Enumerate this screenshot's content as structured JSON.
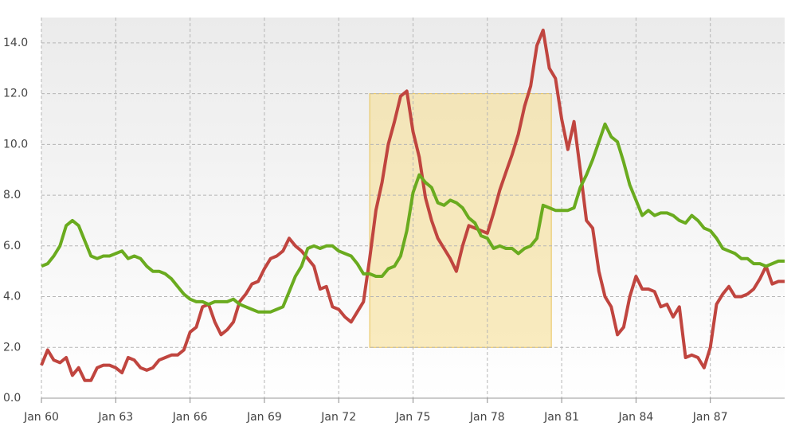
{
  "chart_data": {
    "type": "line",
    "x": [
      "1960-01",
      "1960-04",
      "1960-07",
      "1960-10",
      "1961-01",
      "1961-04",
      "1961-07",
      "1961-10",
      "1962-01",
      "1962-04",
      "1962-07",
      "1962-10",
      "1963-01",
      "1963-04",
      "1963-07",
      "1963-10",
      "1964-01",
      "1964-04",
      "1964-07",
      "1964-10",
      "1965-01",
      "1965-04",
      "1965-07",
      "1965-10",
      "1966-01",
      "1966-04",
      "1966-07",
      "1966-10",
      "1967-01",
      "1967-04",
      "1967-07",
      "1967-10",
      "1968-01",
      "1968-04",
      "1968-07",
      "1968-10",
      "1969-01",
      "1969-04",
      "1969-07",
      "1969-10",
      "1970-01",
      "1970-04",
      "1970-07",
      "1970-10",
      "1971-01",
      "1971-04",
      "1971-07",
      "1971-10",
      "1972-01",
      "1972-04",
      "1972-07",
      "1972-10",
      "1973-01",
      "1973-04",
      "1973-07",
      "1973-10",
      "1974-01",
      "1974-04",
      "1974-07",
      "1974-10",
      "1975-01",
      "1975-04",
      "1975-07",
      "1975-10",
      "1976-01",
      "1976-04",
      "1976-07",
      "1976-10",
      "1977-01",
      "1977-04",
      "1977-07",
      "1977-10",
      "1978-01",
      "1978-04",
      "1978-07",
      "1978-10",
      "1979-01",
      "1979-04",
      "1979-07",
      "1979-10",
      "1980-01",
      "1980-04",
      "1980-07",
      "1980-10",
      "1981-01",
      "1981-04",
      "1981-07",
      "1981-10",
      "1982-01",
      "1982-04",
      "1982-07",
      "1982-10",
      "1983-01",
      "1983-04",
      "1983-07",
      "1983-10",
      "1984-01",
      "1984-04",
      "1984-07",
      "1984-10",
      "1985-01",
      "1985-04",
      "1985-07",
      "1985-10",
      "1986-01",
      "1986-04",
      "1986-07",
      "1986-10",
      "1987-01",
      "1987-04",
      "1987-07",
      "1987-10",
      "1988-01",
      "1988-04",
      "1988-07",
      "1988-10",
      "1989-01",
      "1989-04",
      "1989-07",
      "1989-10",
      "1990-01"
    ],
    "series": [
      {
        "color": "#c0453f",
        "values": [
          1.3,
          1.9,
          1.5,
          1.4,
          1.6,
          0.9,
          1.2,
          0.7,
          0.7,
          1.2,
          1.3,
          1.3,
          1.2,
          1.0,
          1.6,
          1.5,
          1.2,
          1.1,
          1.2,
          1.5,
          1.6,
          1.7,
          1.7,
          1.9,
          2.6,
          2.8,
          3.6,
          3.7,
          3.0,
          2.5,
          2.7,
          3.0,
          3.8,
          4.1,
          4.5,
          4.6,
          5.1,
          5.5,
          5.6,
          5.8,
          6.3,
          6.0,
          5.8,
          5.5,
          5.2,
          4.3,
          4.4,
          3.6,
          3.5,
          3.2,
          3.0,
          3.4,
          3.8,
          5.5,
          7.4,
          8.5,
          10.0,
          10.9,
          11.9,
          12.1,
          10.5,
          9.5,
          7.9,
          7.0,
          6.3,
          5.9,
          5.5,
          5.0,
          6.0,
          6.8,
          6.7,
          6.6,
          6.5,
          7.3,
          8.2,
          8.9,
          9.6,
          10.4,
          11.5,
          12.3,
          13.9,
          14.5,
          13.0,
          12.6,
          11.0,
          9.8,
          10.9,
          9.0,
          7.0,
          6.7,
          5.0,
          4.0,
          3.6,
          2.5,
          2.8,
          4.0,
          4.8,
          4.3,
          4.3,
          4.2,
          3.6,
          3.7,
          3.2,
          3.6,
          1.6,
          1.7,
          1.6,
          1.2,
          2.0,
          3.7,
          4.1,
          4.4,
          4.0,
          4.0,
          4.1,
          4.3,
          4.7,
          5.2,
          4.5,
          4.6,
          4.6
        ]
      },
      {
        "color": "#6aab1f",
        "values": [
          5.2,
          5.3,
          5.6,
          6.0,
          6.8,
          7.0,
          6.8,
          6.2,
          5.6,
          5.5,
          5.6,
          5.6,
          5.7,
          5.8,
          5.5,
          5.6,
          5.5,
          5.2,
          5.0,
          5.0,
          4.9,
          4.7,
          4.4,
          4.1,
          3.9,
          3.8,
          3.8,
          3.7,
          3.8,
          3.8,
          3.8,
          3.9,
          3.7,
          3.6,
          3.5,
          3.4,
          3.4,
          3.4,
          3.5,
          3.6,
          4.2,
          4.8,
          5.2,
          5.9,
          6.0,
          5.9,
          6.0,
          6.0,
          5.8,
          5.7,
          5.6,
          5.3,
          4.9,
          4.9,
          4.8,
          4.8,
          5.1,
          5.2,
          5.6,
          6.6,
          8.1,
          8.8,
          8.5,
          8.3,
          7.7,
          7.6,
          7.8,
          7.7,
          7.5,
          7.1,
          6.9,
          6.4,
          6.3,
          5.9,
          6.0,
          5.9,
          5.9,
          5.7,
          5.9,
          6.0,
          6.3,
          7.6,
          7.5,
          7.4,
          7.4,
          7.4,
          7.5,
          8.3,
          8.8,
          9.4,
          10.1,
          10.8,
          10.3,
          10.1,
          9.3,
          8.4,
          7.8,
          7.2,
          7.4,
          7.2,
          7.3,
          7.3,
          7.2,
          7.0,
          6.9,
          7.2,
          7.0,
          6.7,
          6.6,
          6.3,
          5.9,
          5.8,
          5.7,
          5.5,
          5.5,
          5.3,
          5.3,
          5.2,
          5.3,
          5.4,
          5.4
        ]
      }
    ],
    "xlim": [
      "1960-01",
      "1990-01"
    ],
    "xticks": [
      {
        "value": "1960-01",
        "label": "Jan 60"
      },
      {
        "value": "1963-01",
        "label": "Jan 63"
      },
      {
        "value": "1966-01",
        "label": "Jan 66"
      },
      {
        "value": "1969-01",
        "label": "Jan 69"
      },
      {
        "value": "1972-01",
        "label": "Jan 72"
      },
      {
        "value": "1975-01",
        "label": "Jan 75"
      },
      {
        "value": "1978-01",
        "label": "Jan 78"
      },
      {
        "value": "1981-01",
        "label": "Jan 81"
      },
      {
        "value": "1984-01",
        "label": "Jan 84"
      },
      {
        "value": "1987-01",
        "label": "Jan 87"
      }
    ],
    "ylim": [
      0,
      15
    ],
    "yticks": [
      {
        "value": 0,
        "label": "0.0"
      },
      {
        "value": 2,
        "label": "2.0"
      },
      {
        "value": 4,
        "label": "4.0"
      },
      {
        "value": 6,
        "label": "6.0"
      },
      {
        "value": 8,
        "label": "8.0"
      },
      {
        "value": 10,
        "label": "10.0"
      },
      {
        "value": 12,
        "label": "12.0"
      },
      {
        "value": 14,
        "label": "14.0"
      }
    ],
    "grid": true,
    "highlight": {
      "x": [
        "1973-04",
        "1980-08"
      ],
      "y": [
        2,
        12
      ],
      "color": "#f5dc8c"
    }
  }
}
